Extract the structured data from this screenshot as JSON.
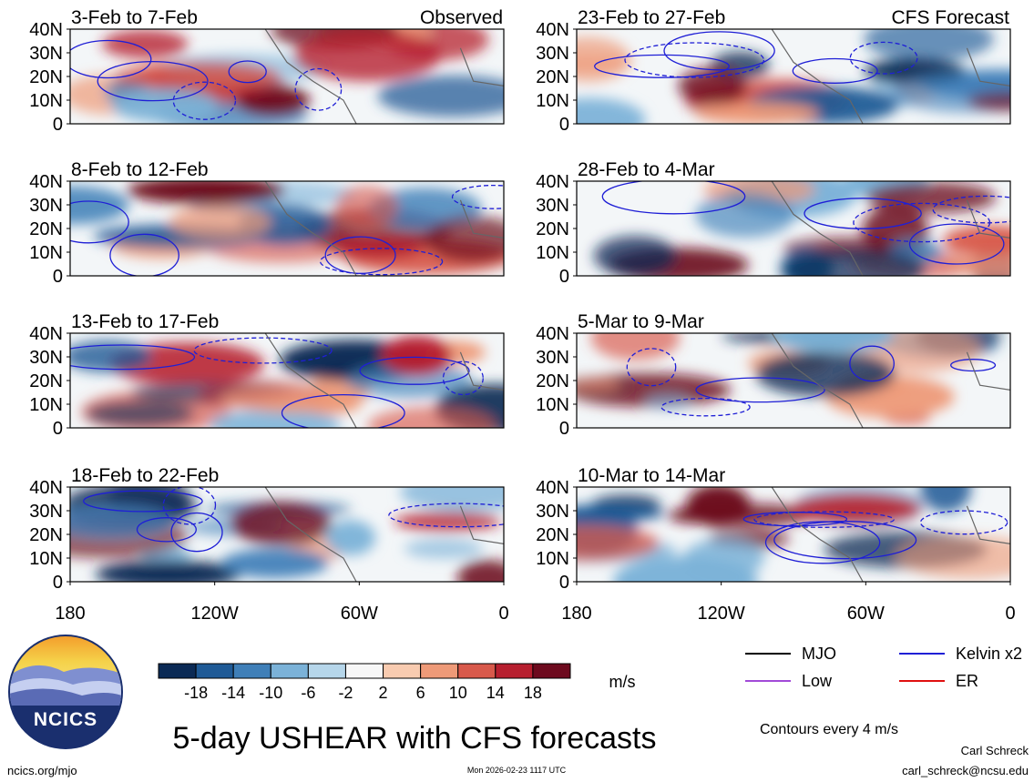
{
  "chart_data": {
    "type": "heatmap",
    "title": "5-day USHEAR with CFS forecasts",
    "units": "m/s",
    "contour_note": "Contours every 4 m/s",
    "x_ticks": [
      "180",
      "120W",
      "60W",
      "0"
    ],
    "y_ticks": [
      "40N",
      "30N",
      "20N",
      "10N",
      "0"
    ],
    "colorbar": {
      "ticks": [
        "-18",
        "-14",
        "-10",
        "-6",
        "-2",
        "2",
        "6",
        "10",
        "14",
        "18"
      ],
      "colors": [
        "#0b2a55",
        "#1f5a96",
        "#3f7fb8",
        "#7bb2d8",
        "#b6d6ea",
        "#f7f7f7",
        "#f8cbb0",
        "#ee9a78",
        "#d8594b",
        "#b71f2f",
        "#6d0a1e"
      ]
    },
    "legend": [
      {
        "label": "MJO",
        "color": "#000000"
      },
      {
        "label": "Kelvin x2",
        "color": "#1f1fd6"
      },
      {
        "label": "Low",
        "color": "#a24ad8"
      },
      {
        "label": "ER",
        "color": "#e01010"
      }
    ],
    "columns": [
      "Observed",
      "CFS Forecast"
    ],
    "panels": [
      {
        "period": "3-Feb to 7-Feb",
        "source": "Observed",
        "col": 0,
        "row": 0
      },
      {
        "period": "8-Feb to 12-Feb",
        "col": 0,
        "row": 1
      },
      {
        "period": "13-Feb to 17-Feb",
        "col": 0,
        "row": 2
      },
      {
        "period": "18-Feb to 22-Feb",
        "col": 0,
        "row": 3
      },
      {
        "period": "23-Feb to 27-Feb",
        "source": "CFS Forecast",
        "col": 1,
        "row": 0
      },
      {
        "period": "28-Feb to 4-Mar",
        "col": 1,
        "row": 1
      },
      {
        "period": "5-Mar to 9-Mar",
        "col": 1,
        "row": 2
      },
      {
        "period": "10-Mar to 14-Mar",
        "col": 1,
        "row": 3
      }
    ]
  },
  "footer": {
    "site": "ncics.org/mjo",
    "timestamp": "Mon 2026-02-23 1117 UTC",
    "author": "Carl Schreck",
    "email": "carl_schreck@ncsu.edu",
    "logo_text": "NCICS"
  }
}
